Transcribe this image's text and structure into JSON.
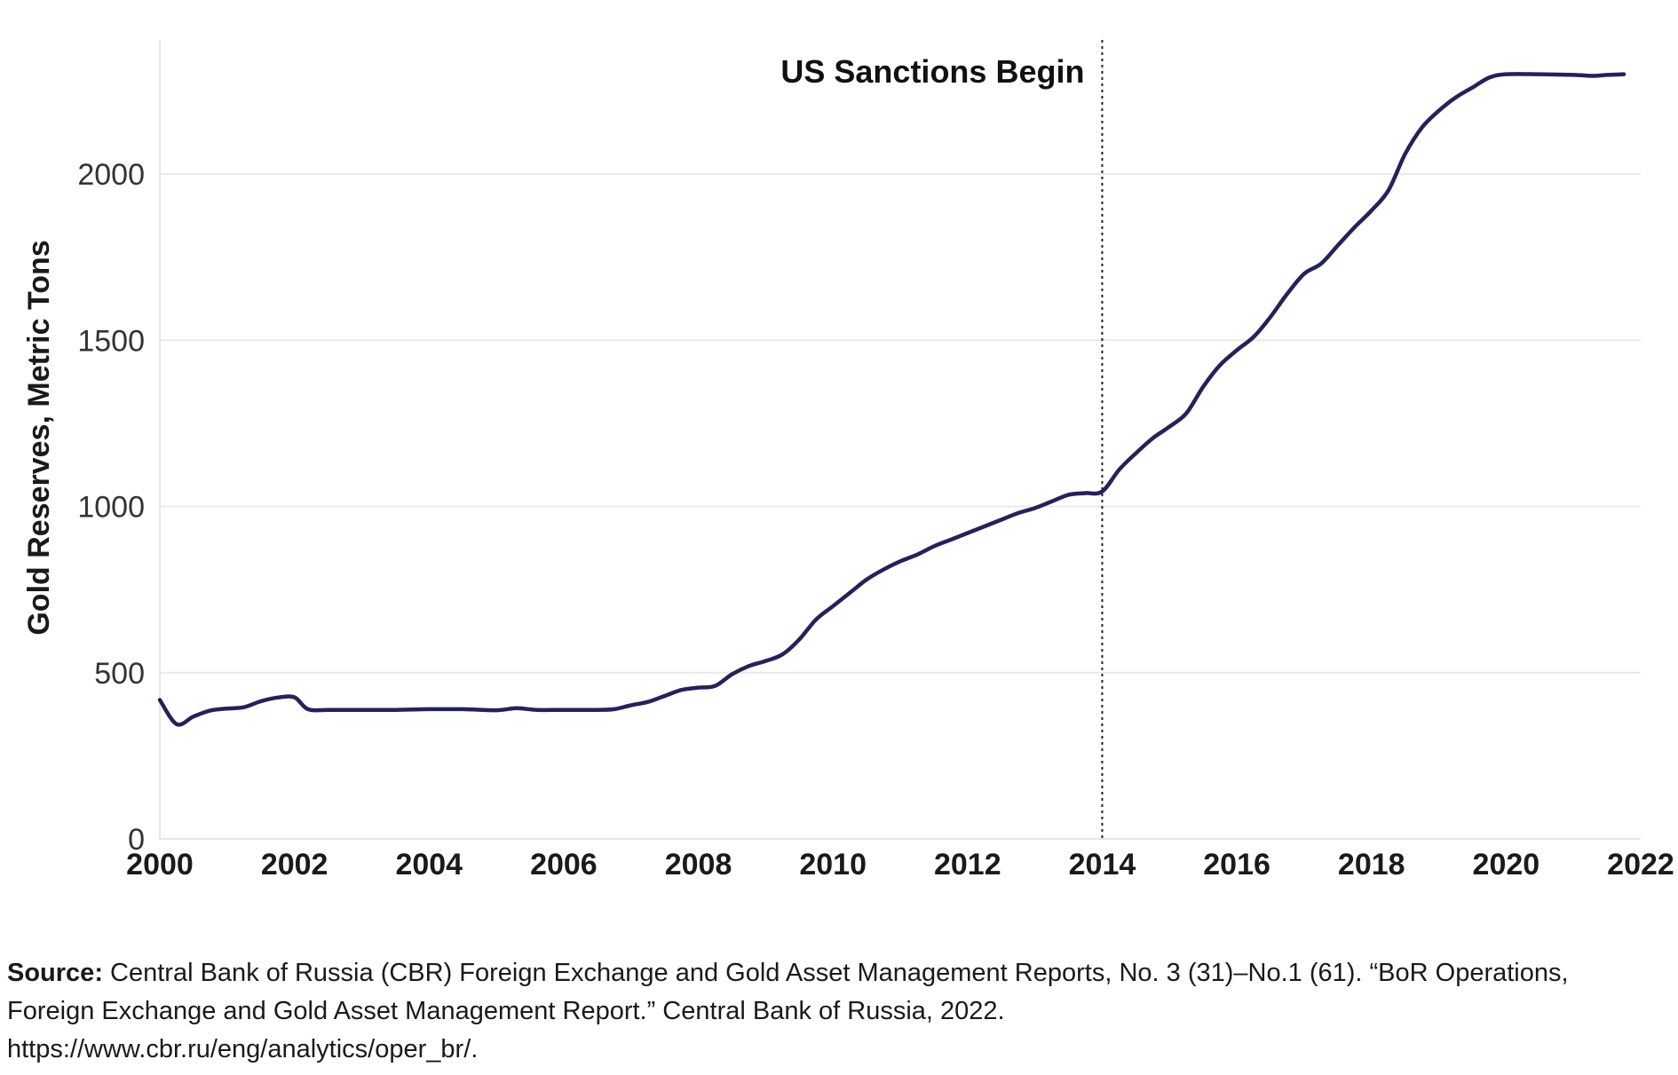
{
  "chart_data": {
    "type": "line",
    "title": "",
    "xlabel": "",
    "ylabel": "Gold Reserves, Metric Tons",
    "xlim": [
      2000,
      2022
    ],
    "ylim": [
      0,
      2400
    ],
    "x_ticks": [
      "2000",
      "2002",
      "2004",
      "2006",
      "2008",
      "2010",
      "2012",
      "2014",
      "2016",
      "2018",
      "2020",
      "2022"
    ],
    "y_ticks": [
      "0",
      "500",
      "1000",
      "1500",
      "2000"
    ],
    "grid": "horizontal",
    "line_color": "#24225a",
    "annotation": {
      "x": 2014,
      "label": "US Sanctions Begin"
    },
    "series": [
      {
        "name": "Gold Reserves",
        "x": [
          2000.0,
          2000.25,
          2000.5,
          2000.75,
          2001.0,
          2001.25,
          2001.5,
          2001.75,
          2002.0,
          2002.2,
          2002.5,
          2003.0,
          2003.5,
          2004.0,
          2004.5,
          2005.0,
          2005.3,
          2005.6,
          2006.0,
          2006.5,
          2006.75,
          2007.0,
          2007.25,
          2007.5,
          2007.75,
          2008.0,
          2008.25,
          2008.5,
          2008.75,
          2009.0,
          2009.25,
          2009.5,
          2009.75,
          2010.0,
          2010.25,
          2010.5,
          2010.75,
          2011.0,
          2011.25,
          2011.5,
          2011.75,
          2012.0,
          2012.25,
          2012.5,
          2012.75,
          2013.0,
          2013.25,
          2013.5,
          2013.75,
          2014.0,
          2014.25,
          2014.5,
          2014.75,
          2015.0,
          2015.25,
          2015.5,
          2015.75,
          2016.0,
          2016.25,
          2016.5,
          2016.75,
          2017.0,
          2017.25,
          2017.5,
          2017.75,
          2018.0,
          2018.25,
          2018.5,
          2018.75,
          2019.0,
          2019.25,
          2019.5,
          2019.75,
          2020.0,
          2020.5,
          2021.0,
          2021.3,
          2021.5,
          2021.75
        ],
        "values": [
          418,
          345,
          368,
          386,
          392,
          396,
          414,
          425,
          426,
          390,
          388,
          388,
          388,
          390,
          390,
          387,
          393,
          388,
          388,
          388,
          390,
          402,
          412,
          430,
          448,
          455,
          460,
          495,
          520,
          535,
          555,
          600,
          660,
          700,
          740,
          780,
          810,
          835,
          855,
          880,
          900,
          920,
          940,
          960,
          980,
          995,
          1015,
          1035,
          1040,
          1045,
          1110,
          1160,
          1205,
          1240,
          1280,
          1360,
          1425,
          1470,
          1510,
          1570,
          1640,
          1700,
          1730,
          1785,
          1840,
          1890,
          1950,
          2060,
          2140,
          2190,
          2230,
          2260,
          2290,
          2300,
          2300,
          2298,
          2295,
          2298,
          2300
        ]
      }
    ]
  },
  "source": {
    "label": "Source:",
    "text": "Central Bank of Russia (CBR) Foreign Exchange and Gold Asset Management Reports, No. 3 (31)–No.1 (61). “BoR Operations, Foreign Exchange and Gold Asset Management Report.” Central Bank of Russia, 2022.",
    "url": "https://www.cbr.ru/eng/analytics/oper_br/."
  }
}
